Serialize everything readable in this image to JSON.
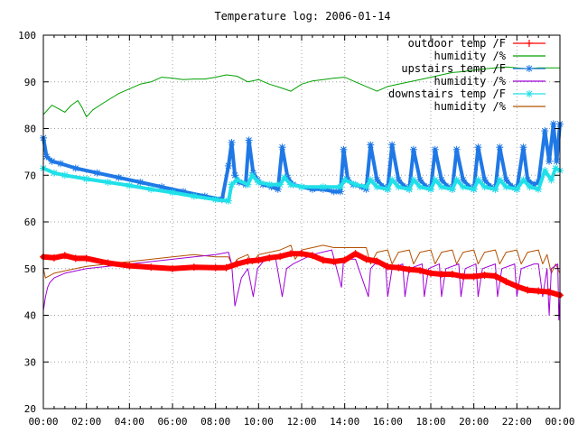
{
  "chart_data": {
    "type": "line",
    "title": "Temperature log: 2006-01-14",
    "xlabel": "",
    "ylabel": "",
    "xlim": [
      "00:00",
      "24:00"
    ],
    "ylim": [
      20,
      100
    ],
    "x_ticks": [
      "00:00",
      "02:00",
      "04:00",
      "06:00",
      "08:00",
      "10:00",
      "12:00",
      "14:00",
      "16:00",
      "18:00",
      "20:00",
      "22:00",
      "00:00"
    ],
    "y_ticks": [
      20,
      30,
      40,
      50,
      60,
      70,
      80,
      90,
      100
    ],
    "grid": true,
    "legend_position": "top-right",
    "series": [
      {
        "name": "outdoor temp /F",
        "color": "#ff0000",
        "marker": "+",
        "x_hours": [
          0,
          0.5,
          1,
          1.5,
          2,
          3,
          4,
          5,
          6,
          7,
          8,
          8.5,
          9,
          9.5,
          10,
          10.5,
          11,
          11.5,
          12,
          12.5,
          13,
          13.5,
          14,
          14.5,
          15,
          15.5,
          16,
          16.5,
          17,
          17.5,
          18,
          18.5,
          19,
          19.5,
          20,
          20.5,
          21,
          21.5,
          22,
          22.5,
          23,
          23.5,
          24
        ],
        "values": [
          52.5,
          52.3,
          52.8,
          52.2,
          52.2,
          51.2,
          50.6,
          50.3,
          50.0,
          50.3,
          50.2,
          50.2,
          51.0,
          51.6,
          51.8,
          52.3,
          52.6,
          53.2,
          53.2,
          52.8,
          51.8,
          51.5,
          51.8,
          53.2,
          52.0,
          51.6,
          50.4,
          50.2,
          49.8,
          49.6,
          49.0,
          48.8,
          48.8,
          48.3,
          48.3,
          48.6,
          48.4,
          47.2,
          46.2,
          45.4,
          45.2,
          45.0,
          44.3
        ]
      },
      {
        "name": "humidity /%",
        "color": "#00a000",
        "x_hours": [
          0,
          0.4,
          0.8,
          1.0,
          1.3,
          1.6,
          1.8,
          2.0,
          2.3,
          2.8,
          3.5,
          4.5,
          5.0,
          5.5,
          6.0,
          6.5,
          7.0,
          7.5,
          8.0,
          8.5,
          9.0,
          9.5,
          10.0,
          10.5,
          11.0,
          11.5,
          12.0,
          12.5,
          13.0,
          13.5,
          14.0,
          14.5,
          15.0,
          15.5,
          16.0,
          16.5,
          17.0,
          17.5,
          18.0,
          18.5,
          19.0,
          19.5,
          20.0,
          20.5,
          21.0,
          21.5,
          22.0,
          22.5,
          23.0,
          23.5,
          24.0
        ],
        "values": [
          83,
          85,
          84,
          83.5,
          85,
          86,
          84.5,
          82.5,
          84,
          85.5,
          87.5,
          89.5,
          90,
          91,
          90.8,
          90.5,
          90.6,
          90.6,
          91.0,
          91.5,
          91.2,
          90.0,
          90.5,
          89.5,
          88.8,
          88.0,
          89.5,
          90.2,
          90.5,
          90.8,
          91.0,
          90.0,
          89.0,
          88.0,
          89.0,
          89.5,
          90.0,
          90.5,
          91.0,
          91.5,
          92.0,
          92.2,
          92.5,
          92.8,
          93.0,
          93.2,
          93.0,
          92.8,
          93.0,
          93.0,
          93.0
        ]
      },
      {
        "name": "upstairs temp /F",
        "color": "#1f78e6",
        "marker": "*",
        "x_hours": [
          0,
          0.15,
          0.4,
          0.8,
          1.5,
          2.5,
          3.5,
          4.5,
          5.5,
          6.5,
          7.5,
          8.3,
          8.6,
          8.75,
          8.9,
          9.1,
          9.4,
          9.55,
          9.75,
          9.95,
          10.2,
          10.6,
          10.9,
          11.1,
          11.35,
          11.6,
          12.0,
          12.5,
          13.0,
          13.5,
          13.8,
          13.95,
          14.15,
          14.4,
          14.8,
          15.0,
          15.2,
          15.5,
          15.8,
          16.0,
          16.2,
          16.5,
          16.8,
          17.0,
          17.2,
          17.5,
          17.8,
          18.0,
          18.2,
          18.5,
          18.8,
          19.0,
          19.2,
          19.5,
          19.8,
          20.0,
          20.2,
          20.5,
          20.8,
          21.0,
          21.2,
          21.5,
          21.8,
          22.0,
          22.3,
          22.5,
          22.8,
          23.0,
          23.3,
          23.5,
          23.7,
          23.85,
          24.0
        ],
        "values": [
          78,
          74,
          73,
          72.5,
          71.5,
          70.5,
          69.5,
          68.5,
          67.5,
          66.5,
          65.5,
          64.8,
          72,
          77,
          70,
          68.5,
          68,
          77.5,
          70.5,
          69,
          68,
          67.5,
          67,
          76,
          69.5,
          68,
          67.5,
          67,
          67,
          66.5,
          66.5,
          75.5,
          69,
          68,
          67.5,
          67,
          76.5,
          69,
          67.5,
          67,
          76.5,
          69,
          67.5,
          67,
          75.5,
          69,
          67.5,
          67,
          75.5,
          69,
          67.5,
          67,
          75.5,
          69,
          67.5,
          67,
          76,
          69,
          67.5,
          67,
          76,
          69,
          67.5,
          67,
          76,
          69,
          68,
          68.5,
          79.5,
          73,
          81,
          73,
          81
        ]
      },
      {
        "name": "humidity /%",
        "color": "#a000d8",
        "x_hours": [
          0,
          0.1,
          0.2,
          0.3,
          0.5,
          1.0,
          2.0,
          3.0,
          4.0,
          5.0,
          6.0,
          7.0,
          8.0,
          8.6,
          8.75,
          8.9,
          9.2,
          9.5,
          9.75,
          9.95,
          10.3,
          10.8,
          11.1,
          11.3,
          11.6,
          12.5,
          13.4,
          13.85,
          13.95,
          14.1,
          14.5,
          15.1,
          15.2,
          15.4,
          15.9,
          16.0,
          16.2,
          16.7,
          16.8,
          17.0,
          17.6,
          17.7,
          17.9,
          18.4,
          18.5,
          18.7,
          19.3,
          19.4,
          19.6,
          20.1,
          20.2,
          20.4,
          21.0,
          21.1,
          21.3,
          21.9,
          22.0,
          22.2,
          22.8,
          23.0,
          23.2,
          23.4,
          23.5,
          23.6,
          23.9,
          23.95,
          24.0
        ],
        "values": [
          41,
          44,
          46,
          47,
          48,
          49,
          50,
          50.5,
          51,
          51.5,
          52,
          52.5,
          53,
          53.5,
          51,
          42,
          48,
          50,
          44,
          50,
          52,
          52,
          44,
          50,
          51,
          53,
          54,
          46,
          52,
          52,
          52,
          44,
          50,
          51,
          51,
          44,
          50,
          51,
          44,
          50,
          51,
          44,
          50,
          51,
          44,
          50,
          51,
          44,
          50,
          51,
          44,
          50,
          51,
          44,
          50,
          51,
          44,
          50,
          51,
          51,
          44,
          50,
          40,
          50,
          51,
          39,
          44
        ]
      },
      {
        "name": "downstairs temp /F",
        "color": "#20e0e8",
        "marker": "*",
        "x_hours": [
          0,
          0.5,
          1.0,
          2.0,
          3.0,
          4.0,
          5.0,
          6.0,
          7.0,
          8.0,
          8.6,
          8.75,
          9.0,
          9.5,
          9.7,
          10.0,
          10.5,
          11.0,
          11.2,
          11.5,
          12.0,
          13.0,
          13.8,
          14.0,
          14.5,
          15.0,
          15.2,
          15.5,
          16.0,
          16.2,
          16.5,
          17.0,
          17.2,
          17.5,
          18.0,
          18.2,
          18.5,
          19.0,
          19.2,
          19.5,
          20.0,
          20.2,
          20.5,
          21.0,
          21.2,
          21.5,
          22.0,
          22.3,
          22.6,
          23.0,
          23.3,
          23.6,
          23.8,
          24.0
        ],
        "values": [
          71.5,
          70.5,
          70,
          69.2,
          68.5,
          67.8,
          67,
          66.3,
          65.5,
          64.8,
          64.5,
          68,
          69,
          68,
          70,
          68.5,
          68,
          68,
          69.5,
          68,
          67.5,
          67.5,
          67.5,
          69,
          68,
          67.5,
          69,
          67.5,
          67,
          69,
          67.5,
          67,
          69,
          67.5,
          67,
          69,
          67.5,
          67,
          69,
          67.5,
          67,
          69,
          67.5,
          67,
          69,
          67.5,
          67,
          69,
          67.5,
          67,
          71,
          69,
          71.5,
          71
        ]
      },
      {
        "name": "humidity /%",
        "color": "#b45000",
        "x_hours": [
          0,
          0.1,
          0.5,
          1.0,
          2.0,
          3.0,
          4.0,
          5.0,
          6.0,
          7.0,
          8.0,
          8.6,
          8.8,
          9.0,
          9.5,
          9.7,
          10.0,
          11.0,
          11.5,
          11.7,
          12.0,
          12.5,
          13.0,
          13.5,
          14.0,
          14.5,
          15.0,
          15.2,
          15.5,
          16.0,
          16.2,
          16.5,
          17.0,
          17.2,
          17.5,
          18.0,
          18.2,
          18.5,
          19.0,
          19.2,
          19.5,
          20.0,
          20.2,
          20.5,
          21.0,
          21.2,
          21.5,
          22.0,
          22.2,
          22.5,
          23.0,
          23.2,
          23.4,
          23.6,
          23.8,
          24.0
        ],
        "values": [
          50,
          48,
          49,
          49.5,
          50.5,
          51,
          51.5,
          52,
          52.5,
          53,
          52.5,
          52.5,
          50.5,
          52,
          53,
          51,
          53,
          54,
          55,
          52,
          54,
          54.5,
          55,
          54.5,
          54.5,
          54.5,
          54.5,
          51,
          53.5,
          54,
          51,
          53.5,
          54,
          51,
          53.5,
          54,
          51,
          53.5,
          54,
          51,
          53.5,
          54,
          51,
          53.5,
          54,
          51,
          53.5,
          54,
          51,
          53.5,
          54,
          51,
          53,
          49,
          51,
          49
        ]
      }
    ]
  }
}
